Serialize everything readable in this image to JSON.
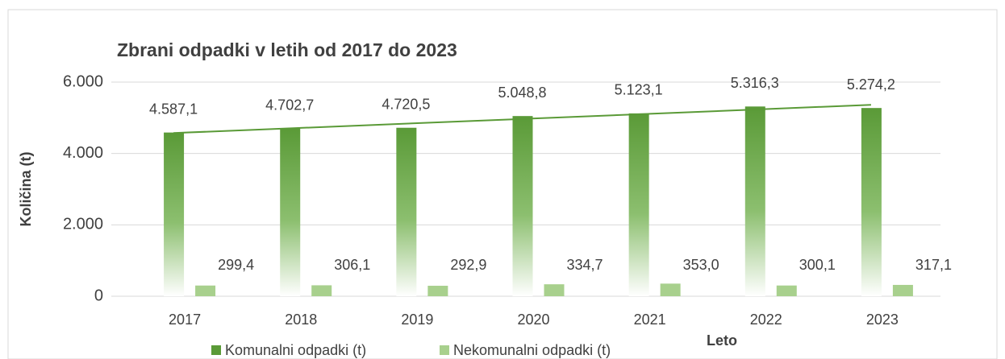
{
  "chart_data": {
    "type": "bar",
    "title": "Zbrani odpadki v letih od 2017 do 2023",
    "x_label": "Leto",
    "y_label": "Količina (t)",
    "categories": [
      "2017",
      "2018",
      "2019",
      "2020",
      "2021",
      "2022",
      "2023"
    ],
    "series": [
      {
        "name": "Komunalni odpadki (t)",
        "color": "#5a9a37",
        "values": [
          4587.1,
          4702.7,
          4720.5,
          5048.8,
          5123.1,
          5316.3,
          5274.2
        ],
        "value_labels": [
          "4.587,1",
          "4.702,7",
          "4.720,5",
          "5.048,8",
          "5.123,1",
          "5.316,3",
          "5.274,2"
        ],
        "trendline": true
      },
      {
        "name": "Nekomunalni odpadki (t)",
        "color": "#a8d08d",
        "values": [
          299.4,
          306.1,
          292.9,
          334.7,
          353.0,
          300.1,
          317.1
        ],
        "value_labels": [
          "299,4",
          "306,1",
          "292,9",
          "334,7",
          "353,0",
          "300,1",
          "317,1"
        ]
      }
    ],
    "ylim": [
      0,
      6000
    ],
    "yticks": [
      0,
      {
        "value": 2000,
        "label": "2.000"
      },
      {
        "value": 4000,
        "label": "4.000"
      },
      {
        "value": 6000,
        "label": "6.000"
      }
    ],
    "grid": true,
    "legend": "bottom"
  }
}
